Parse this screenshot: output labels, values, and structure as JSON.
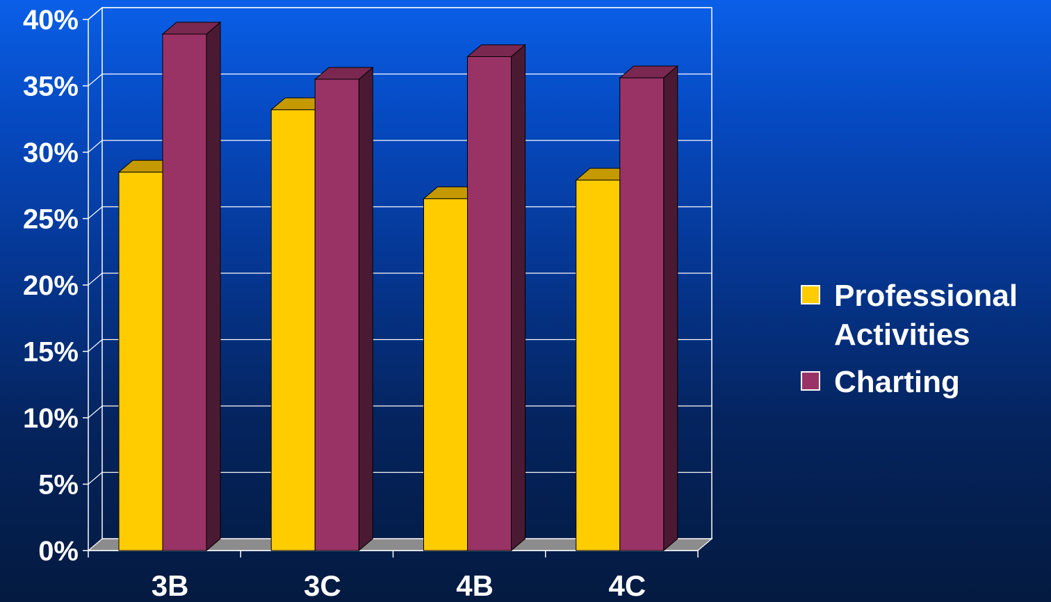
{
  "chart_data": {
    "type": "bar",
    "categories": [
      "3B",
      "3C",
      "4B",
      "4C"
    ],
    "series": [
      {
        "name": "Professional Activities",
        "values": [
          28.5,
          33.2,
          26.5,
          27.9
        ],
        "color": "#ffcc00"
      },
      {
        "name": "Charting",
        "values": [
          38.9,
          35.5,
          37.2,
          35.6
        ],
        "color": "#993366"
      }
    ],
    "yticks": [
      "0%",
      "5%",
      "10%",
      "15%",
      "20%",
      "25%",
      "30%",
      "35%",
      "40%"
    ],
    "ylim": [
      0,
      40
    ],
    "grid": true,
    "legend_position": "right",
    "three_d": true
  }
}
